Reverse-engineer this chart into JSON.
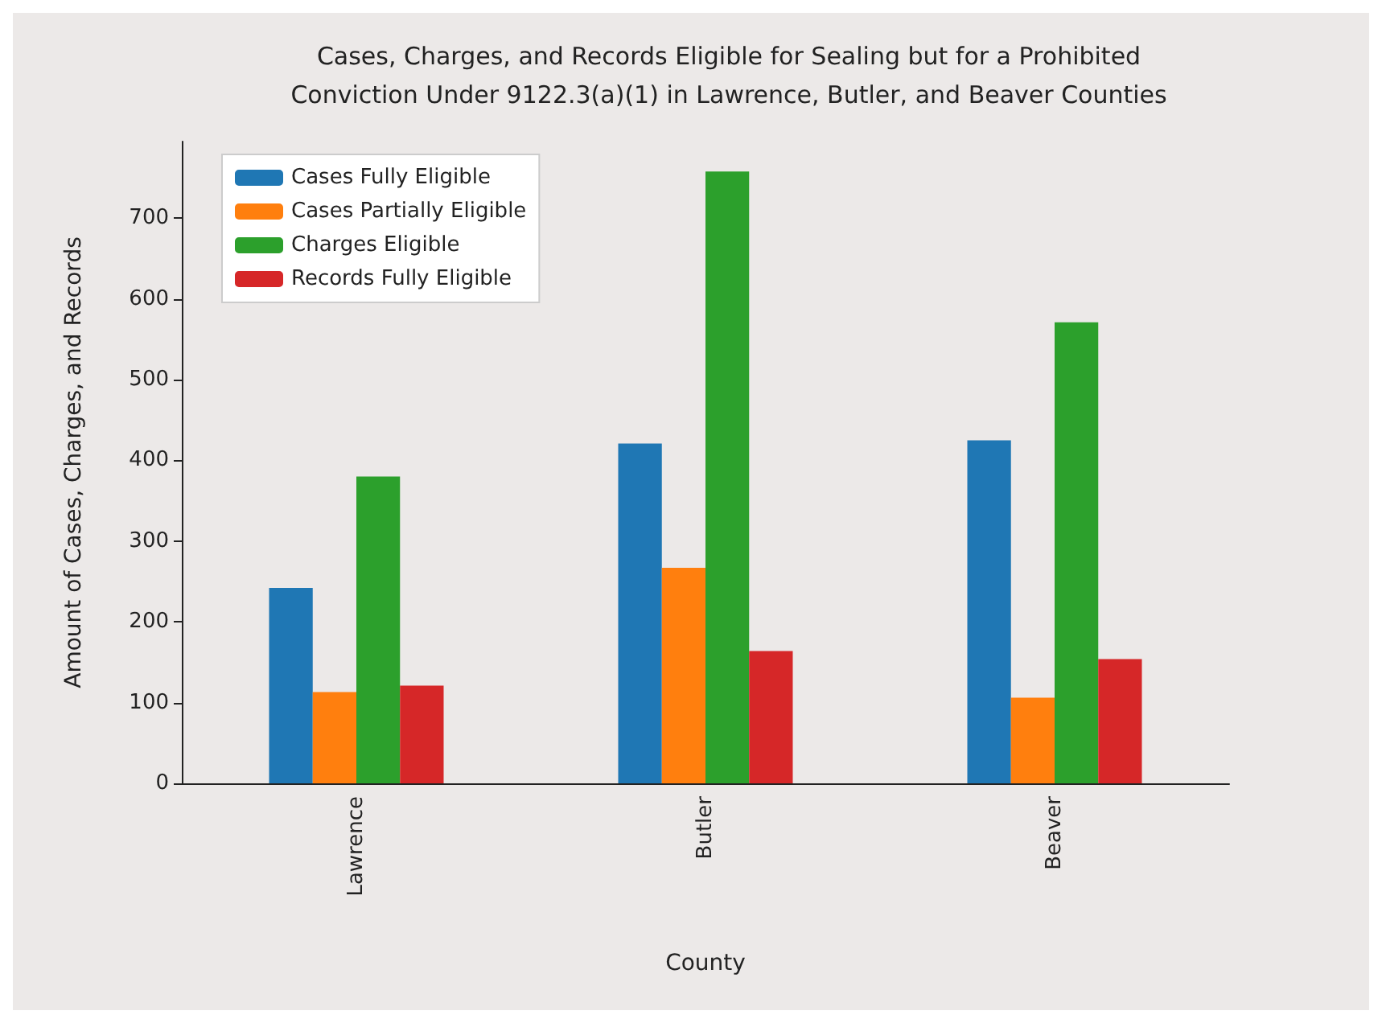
{
  "chart_data": {
    "type": "bar",
    "title": "Cases, Charges, and Records Eligible for Sealing but for a Prohibited\nConviction Under 9122.3(a)(1) in Lawrence, Butler, and Beaver Counties",
    "xlabel": "County",
    "ylabel": "Amount of Cases, Charges, and Records",
    "categories": [
      "Lawrence",
      "Butler",
      "Beaver"
    ],
    "series": [
      {
        "name": "Cases Fully Eligible",
        "color": "#1f77b4",
        "values": [
          242,
          421,
          425
        ]
      },
      {
        "name": "Cases Partially Eligible",
        "color": "#ff7f0e",
        "values": [
          113,
          267,
          106
        ]
      },
      {
        "name": "Charges Eligible",
        "color": "#2ca02c",
        "values": [
          380,
          758,
          571
        ]
      },
      {
        "name": "Records Fully Eligible",
        "color": "#d62728",
        "values": [
          121,
          164,
          154
        ]
      }
    ],
    "ylim": [
      0,
      795
    ],
    "yticks": [
      0,
      100,
      200,
      300,
      400,
      500,
      600,
      700
    ],
    "grid": false,
    "legend": "top left"
  }
}
